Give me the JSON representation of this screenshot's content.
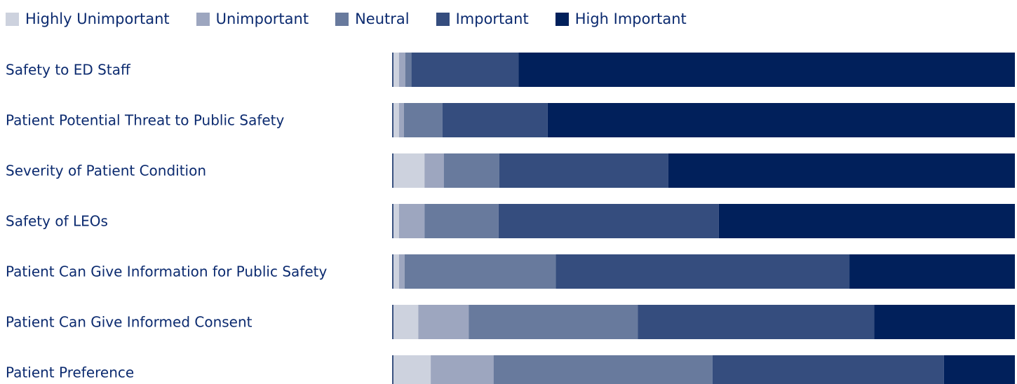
{
  "chart_data": {
    "type": "bar",
    "orientation": "horizontal",
    "stacked": true,
    "normalized_to": 100,
    "legend_position": "top",
    "grid": false,
    "title": "",
    "xlabel": "",
    "ylabel": "",
    "xlim": [
      0,
      100
    ],
    "categories": [
      "Safety to ED Staff",
      "Patient Potential Threat to Public Safety",
      "Severity of Patient Condition",
      "Safety of LEOs",
      "Patient Can Give Information for Public Safety",
      "Patient Can Give Informed Consent",
      "Patient Preference"
    ],
    "series": [
      {
        "name": "Highly Unimportant",
        "color": "#cdd2de",
        "values": [
          1.0,
          1.0,
          5.1,
          1.0,
          1.0,
          4.1,
          6.1
        ]
      },
      {
        "name": "Unimportant",
        "color": "#9da6bf",
        "values": [
          1.0,
          0.8,
          3.1,
          4.1,
          0.9,
          8.1,
          10.1
        ]
      },
      {
        "name": "Neutral",
        "color": "#687a9d",
        "values": [
          1.0,
          6.2,
          8.9,
          11.9,
          24.3,
          27.2,
          35.2
        ]
      },
      {
        "name": "Important",
        "color": "#354d7e",
        "values": [
          17.2,
          16.9,
          27.2,
          35.4,
          47.2,
          38.0,
          37.2
        ]
      },
      {
        "name": "High Important",
        "color": "#01205b",
        "values": [
          79.8,
          75.1,
          55.7,
          47.6,
          26.6,
          22.6,
          11.4
        ]
      }
    ]
  }
}
